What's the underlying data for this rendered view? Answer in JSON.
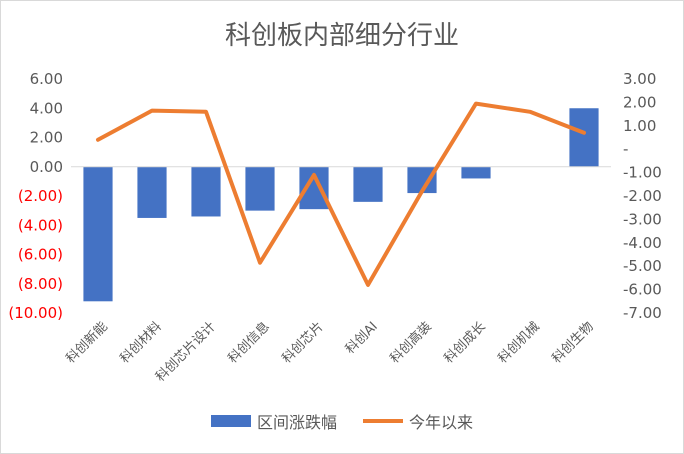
{
  "chart_data": {
    "type": "bar+line",
    "title": "科创板内部细分行业",
    "categories": [
      "科创新能",
      "科创材料",
      "科创芯片设计",
      "科创信息",
      "科创芯片",
      "科创AI",
      "科创高装",
      "科创成长",
      "科创机械",
      "科创生物"
    ],
    "series": [
      {
        "name": "区间涨跌幅",
        "type": "bar",
        "axis": "left",
        "color": "#4472c4",
        "values": [
          -9.2,
          -3.5,
          -3.4,
          -3.0,
          -2.9,
          -2.4,
          -1.8,
          -0.8,
          0.0,
          4.0
        ]
      },
      {
        "name": "今年以来",
        "type": "line",
        "axis": "right",
        "color": "#ed7d31",
        "values": [
          0.4,
          1.65,
          1.6,
          -4.85,
          -1.1,
          -5.8,
          -1.8,
          1.95,
          1.6,
          0.7
        ]
      }
    ],
    "left_axis": {
      "ylim": [
        -10,
        6
      ],
      "ticks": [
        "6.00",
        "4.00",
        "2.00",
        "0.00",
        "(2.00)",
        "(4.00)",
        "(6.00)",
        "(8.00)",
        "(10.00)"
      ],
      "negative_color": "#ff0000"
    },
    "right_axis": {
      "ylim": [
        -7,
        3
      ],
      "ticks": [
        "3.00",
        "2.00",
        "1.00",
        "-",
        "-1.00",
        "-2.00",
        "-3.00",
        "-4.00",
        "-5.00",
        "-6.00",
        "-7.00"
      ]
    },
    "legend": {
      "position": "bottom"
    },
    "grid": false
  }
}
